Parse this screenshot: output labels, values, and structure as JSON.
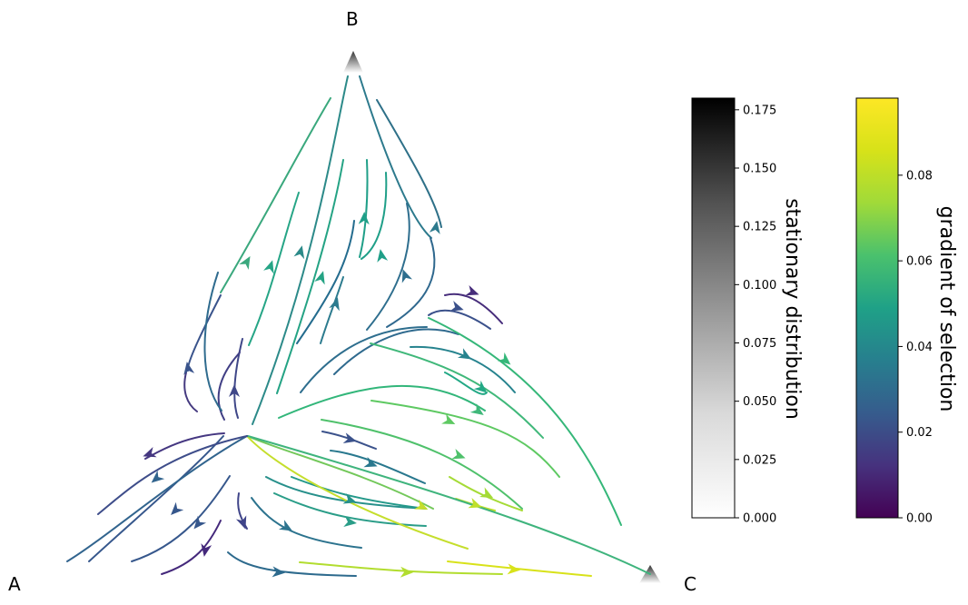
{
  "chart_data": {
    "type": "ternary-streamplot",
    "vertices": [
      "A",
      "B",
      "C"
    ],
    "colorbars": [
      {
        "label": "stationary distribution",
        "colormap": "Greys",
        "range": [
          0.0,
          0.18
        ],
        "ticks": [
          "0.000",
          "0.025",
          "0.050",
          "0.075",
          "0.100",
          "0.125",
          "0.150",
          "0.175"
        ]
      },
      {
        "label": "gradient of selection",
        "colormap": "viridis",
        "range": [
          0.0,
          0.098
        ],
        "ticks": [
          "0.00",
          "0.02",
          "0.04",
          "0.06",
          "0.08"
        ]
      }
    ],
    "vertex_stationary_mass": {
      "A": 0.0,
      "B": 0.175,
      "C": 0.175
    }
  }
}
